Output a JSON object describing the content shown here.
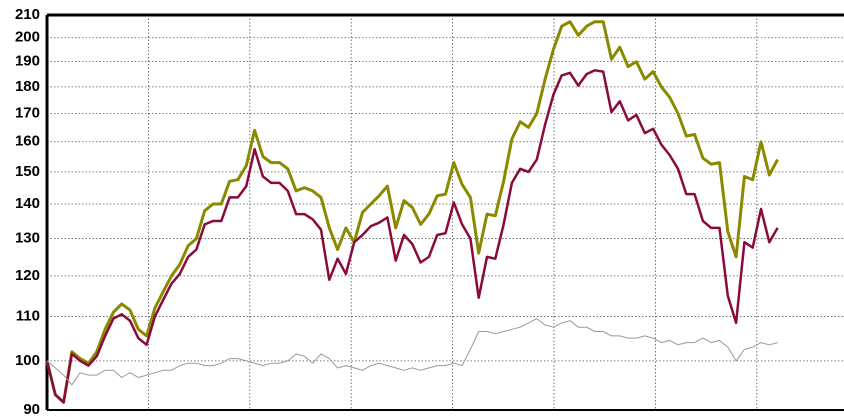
{
  "chart_data": {
    "type": "line",
    "log_scale": true,
    "grid": true,
    "ylim": [
      90,
      210
    ],
    "yticks": [
      90,
      100,
      110,
      120,
      130,
      140,
      150,
      160,
      170,
      180,
      190,
      200,
      210
    ],
    "series": [
      {
        "color": "#8a8a00",
        "values": [
          100,
          93,
          91.5,
          102,
          100.5,
          99.5,
          102,
          107,
          111,
          113,
          111.5,
          107,
          105.5,
          112,
          116,
          120,
          123,
          128,
          130,
          138,
          140,
          140,
          147,
          147.5,
          152,
          164,
          155,
          153,
          153,
          151,
          144,
          145,
          144,
          142,
          133,
          127,
          133,
          129,
          137.5,
          140,
          142.5,
          145.5,
          133,
          141,
          139,
          134,
          137,
          142.5,
          143,
          153,
          146,
          142,
          126,
          137,
          136.5,
          147,
          161,
          167,
          165,
          170,
          183,
          195,
          205,
          207,
          201,
          205,
          207,
          207,
          191,
          196,
          188,
          190,
          183,
          186,
          180,
          176,
          170,
          162,
          162.5,
          154.5,
          152.5,
          153,
          132,
          125,
          148.5,
          147.5,
          160,
          149,
          154
        ]
      },
      {
        "color": "#8b0a3c",
        "values": [
          100,
          93,
          91.5,
          101.5,
          100,
          99,
          101,
          105.5,
          109.5,
          110.5,
          109,
          105,
          103.5,
          110,
          114,
          118,
          120.5,
          125,
          127,
          134,
          135,
          135,
          142,
          142,
          145.5,
          157.5,
          148.5,
          146.5,
          146.5,
          144,
          137,
          137,
          135.5,
          132.5,
          119,
          124.5,
          120.5,
          129,
          131,
          133.5,
          134.5,
          136,
          124,
          131,
          128.5,
          123.5,
          125,
          131,
          131.5,
          140.5,
          134,
          130,
          114.5,
          125,
          124.5,
          134,
          146.5,
          151,
          150,
          154,
          166,
          177,
          184.5,
          185.5,
          180.5,
          185,
          186.5,
          186,
          170.5,
          174.5,
          167.5,
          169.5,
          163,
          164.5,
          159,
          155.5,
          151,
          143,
          143,
          135,
          133,
          133,
          115,
          108.5,
          129,
          127.5,
          138.5,
          129,
          133
        ]
      },
      {
        "color": "#999999",
        "values": [
          100,
          98.5,
          97,
          95,
          97.5,
          97,
          97,
          98,
          98,
          96.5,
          97.5,
          96.5,
          97,
          97.5,
          98,
          98,
          99,
          99.5,
          99.5,
          99,
          99,
          99.5,
          100.5,
          100.5,
          100,
          99.5,
          99,
          99.5,
          99.5,
          100,
          101.5,
          101,
          99.5,
          101.5,
          100.5,
          98.5,
          99,
          98.5,
          98,
          99,
          99.5,
          99,
          98.5,
          98,
          98.5,
          98,
          98.5,
          99,
          99,
          99.5,
          99,
          102.5,
          106.5,
          106.5,
          106,
          106.5,
          107,
          107.5,
          108.5,
          109.5,
          108,
          107.5,
          108.5,
          109,
          107.5,
          107.5,
          106.5,
          106.5,
          105.5,
          105.5,
          105,
          105,
          105.5,
          105,
          104,
          104.5,
          103.5,
          104,
          104,
          105,
          104,
          104.5,
          103,
          100,
          102.5,
          103,
          104,
          103.5,
          104
        ]
      }
    ]
  }
}
